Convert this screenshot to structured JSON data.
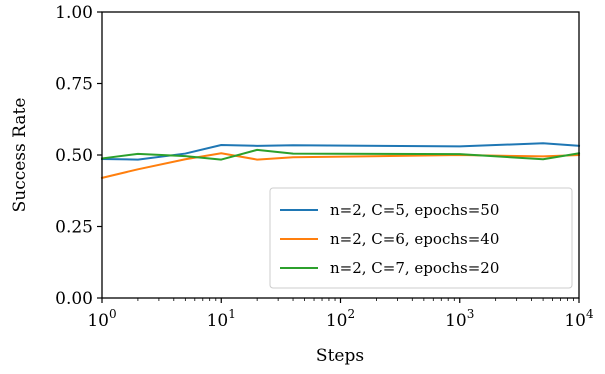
{
  "chart_data": {
    "type": "line",
    "xlabel": "Steps",
    "ylabel": "Success Rate",
    "xscale": "log",
    "xlim": [
      1,
      10000
    ],
    "ylim": [
      0,
      1
    ],
    "grid": false,
    "legend_position": "lower-right",
    "x_ticks": [
      1,
      10,
      100,
      1000,
      10000
    ],
    "x_tick_labels": [
      {
        "base": "10",
        "exp": "0"
      },
      {
        "base": "10",
        "exp": "1"
      },
      {
        "base": "10",
        "exp": "2"
      },
      {
        "base": "10",
        "exp": "3"
      },
      {
        "base": "10",
        "exp": "4"
      }
    ],
    "y_ticks": [
      0,
      0.25,
      0.5,
      0.75,
      1.0
    ],
    "y_tick_labels": [
      "0.00",
      "0.25",
      "0.50",
      "0.75",
      "1.00"
    ],
    "series": [
      {
        "name": "n=2, C=5, epochs=50",
        "color": "#1f77b4",
        "x": [
          1,
          2,
          5,
          10,
          20,
          40,
          1000,
          5000,
          10000
        ],
        "y": [
          0.486,
          0.484,
          0.505,
          0.535,
          0.532,
          0.534,
          0.53,
          0.541,
          0.532
        ]
      },
      {
        "name": "n=2, C=6, epochs=40",
        "color": "#ff7f0e",
        "x": [
          1,
          2,
          5,
          10,
          20,
          40,
          1000,
          5000,
          10000
        ],
        "y": [
          0.42,
          0.45,
          0.485,
          0.506,
          0.484,
          0.492,
          0.5,
          0.495,
          0.5
        ]
      },
      {
        "name": "n=2, C=7, epochs=20",
        "color": "#2ca02c",
        "x": [
          1,
          2,
          5,
          10,
          20,
          40,
          1000,
          5000,
          10000
        ],
        "y": [
          0.488,
          0.504,
          0.496,
          0.484,
          0.518,
          0.505,
          0.503,
          0.485,
          0.506
        ]
      }
    ]
  }
}
